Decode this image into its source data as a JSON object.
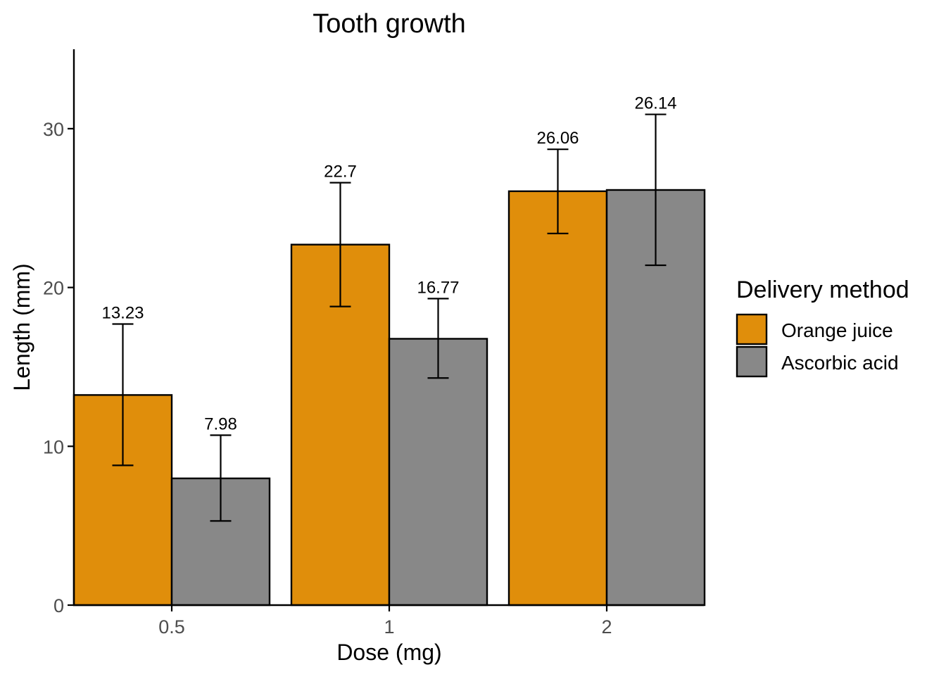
{
  "chart_data": {
    "type": "bar",
    "title": "Tooth growth",
    "xlabel": "Dose (mg)",
    "ylabel": "Length (mm)",
    "categories": [
      "0.5",
      "1",
      "2"
    ],
    "ylim": [
      0,
      35
    ],
    "yticks": [
      0,
      10,
      20,
      30
    ],
    "grid": false,
    "legend": {
      "title": "Delivery method",
      "position": "right"
    },
    "series": [
      {
        "name": "Orange juice",
        "color": "#E08E0B",
        "values": [
          13.23,
          22.7,
          26.06
        ],
        "labels": [
          "13.23",
          "22.7",
          "26.06"
        ],
        "error_low": [
          8.8,
          18.8,
          23.4
        ],
        "error_high": [
          17.7,
          26.6,
          28.7
        ]
      },
      {
        "name": "Ascorbic acid",
        "color": "#888888",
        "values": [
          7.98,
          16.77,
          26.14
        ],
        "labels": [
          "7.98",
          "16.77",
          "26.14"
        ],
        "error_low": [
          5.3,
          14.3,
          21.4
        ],
        "error_high": [
          10.7,
          19.3,
          30.9
        ]
      }
    ]
  }
}
